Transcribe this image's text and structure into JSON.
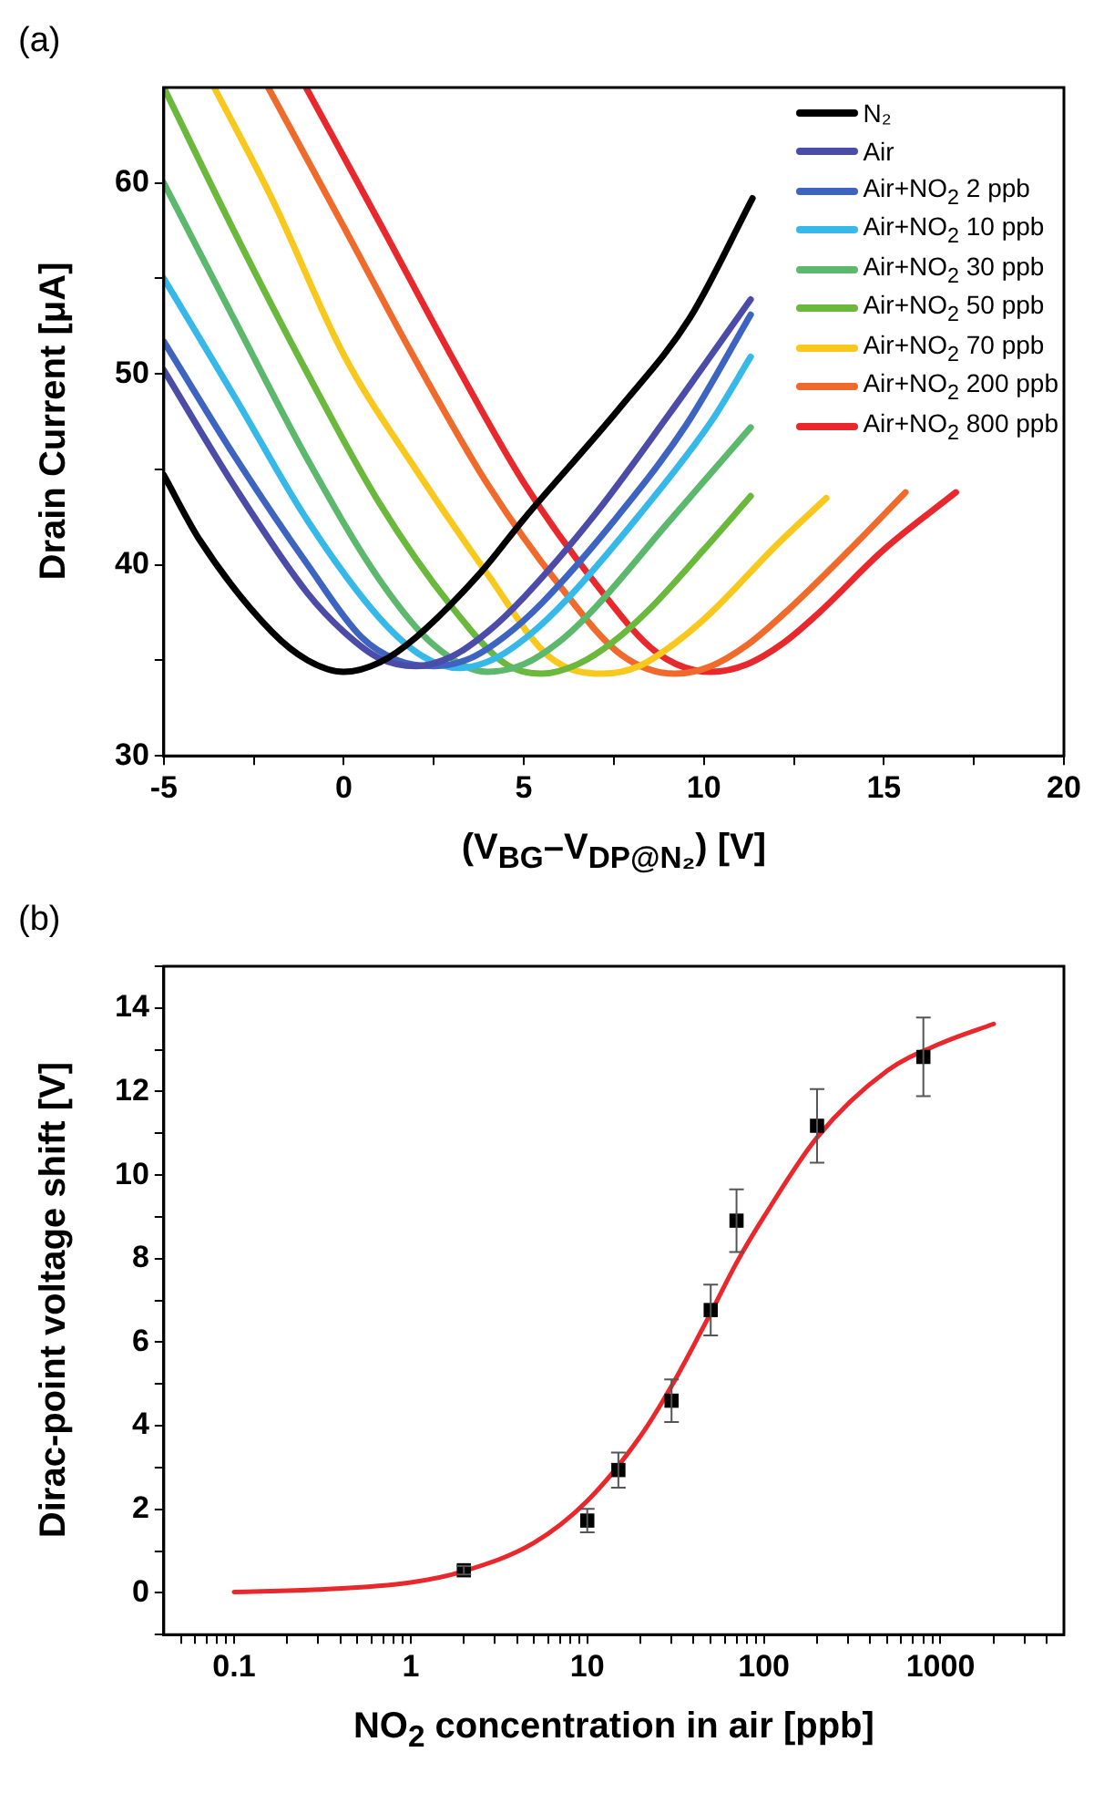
{
  "chart_data": [
    {
      "type": "line",
      "title": "(a)",
      "xlabel": "(V$_{BG}$–V$_{DP@N₂}$)  [V]",
      "ylabel": "Drain Current [μA]",
      "xlim": [
        -5,
        20
      ],
      "ylim": [
        30,
        65
      ],
      "xticks": [
        -5,
        {
          "value": -2.5,
          "label": null
        },
        0,
        {
          "value": 2.5,
          "label": null
        },
        5,
        {
          "value": 7.5,
          "label": null
        },
        10,
        {
          "value": 12.5,
          "label": null
        },
        15,
        {
          "value": 17.5,
          "label": null
        },
        20
      ],
      "yticks": [
        30,
        {
          "value": 35,
          "label": null
        },
        40,
        {
          "value": 45,
          "label": null
        },
        50,
        {
          "value": 55,
          "label": null
        },
        60
      ],
      "legend": "top right",
      "series": [
        {
          "name": "N₂",
          "color": "#000000",
          "x": [
            -5,
            -4,
            -2,
            -1,
            0,
            1,
            2,
            3.8,
            5,
            7.7,
            9.6,
            11.35
          ],
          "values": [
            44.7,
            41.3,
            36.5,
            35.0,
            34.4,
            34.9,
            36.2,
            39.6,
            42.4,
            48.3,
            52.9,
            59.2
          ]
        },
        {
          "name": "Air",
          "color": "#4b4ba8",
          "x": [
            -5,
            -3,
            -1,
            0,
            1,
            2,
            3,
            4,
            5,
            7,
            9,
            11.3
          ],
          "values": [
            50.2,
            44.0,
            38.5,
            36.5,
            35.1,
            34.7,
            35.2,
            36.5,
            38.3,
            42.7,
            47.8,
            53.9
          ]
        },
        {
          "name": "Air+NO$_{2}$ 2 ppb",
          "color": "#3c64c0",
          "x": [
            -5,
            -3,
            -1,
            0.5,
            1.5,
            2.5,
            3.5,
            4.5,
            5.5,
            7.5,
            9.5,
            11.3
          ],
          "values": [
            51.7,
            45.6,
            40.0,
            36.2,
            35.0,
            34.7,
            35.1,
            36.3,
            38.0,
            42.3,
            47.3,
            53.1
          ]
        },
        {
          "name": "Air+NO$_{2}$ 10 ppb",
          "color": "#36b8e8",
          "x": [
            -5,
            -3,
            -1,
            1,
            2.2,
            3.2,
            4.2,
            5.2,
            6.2,
            8.2,
            10.2,
            11.3
          ],
          "values": [
            55.0,
            48.7,
            42.3,
            37.2,
            35.2,
            34.6,
            35.1,
            36.4,
            38.2,
            42.6,
            47.5,
            50.9
          ]
        },
        {
          "name": "Air+NO$_{2}$ 30 ppb",
          "color": "#5cb86c",
          "x": [
            -5,
            -3,
            -1,
            1,
            2.5,
            4,
            5,
            6,
            7,
            9,
            11.3
          ],
          "values": [
            60.0,
            52.7,
            45.5,
            39.2,
            35.8,
            34.4,
            34.8,
            36.0,
            37.8,
            42.2,
            47.2
          ]
        },
        {
          "name": "Air+NO$_{2}$ 50 ppb",
          "color": "#6ab83c",
          "x": [
            -5,
            -3,
            -1,
            1,
            3,
            4.5,
            5.5,
            6.5,
            7.5,
            8.5,
            10,
            11.3
          ],
          "values": [
            65.0,
            57.3,
            50.0,
            43.2,
            37.8,
            34.8,
            34.3,
            34.8,
            36.0,
            37.7,
            40.8,
            43.6
          ]
        },
        {
          "name": "Air+NO$_{2}$ 70 ppb",
          "color": "#f8c81c",
          "x": [
            -3.6,
            -2,
            0,
            2,
            4,
            5.7,
            7.2,
            8.2,
            9.2,
            10.2,
            12,
            13.4
          ],
          "values": [
            65.0,
            59.2,
            51.0,
            45.0,
            39.5,
            35.2,
            34.3,
            34.7,
            35.9,
            37.5,
            41.0,
            43.5
          ]
        },
        {
          "name": "Air+NO$_{2}$ 200 ppb",
          "color": "#f06a2c",
          "x": [
            -2.1,
            0,
            2,
            4,
            6,
            7.7,
            9.2,
            10.2,
            11.2,
            12.2,
            14,
            15.6
          ],
          "values": [
            65.0,
            57.7,
            50.7,
            44.2,
            38.9,
            35.3,
            34.3,
            34.7,
            35.8,
            37.4,
            40.7,
            43.8
          ]
        },
        {
          "name": "Air+NO$_{2}$ 800 ppb",
          "color": "#e8282c",
          "x": [
            -1.05,
            1,
            3,
            5,
            7,
            8.7,
            10.2,
            11.2,
            12.2,
            13.2,
            15,
            17
          ],
          "values": [
            65.0,
            57.9,
            50.9,
            44.3,
            39.0,
            35.4,
            34.4,
            34.8,
            35.9,
            37.5,
            40.8,
            43.8
          ]
        }
      ]
    },
    {
      "type": "scatter",
      "title": "(b)",
      "xlabel": "NO$_{2}$ concentration in air [ppb]",
      "ylabel": "Dirac-point voltage shift [V]",
      "log": "x",
      "xlim": [
        0.04,
        5000
      ],
      "ylim": [
        -1,
        15
      ],
      "xticks": [
        {
          "value": 0.05,
          "label": null
        },
        {
          "value": 0.06,
          "label": null
        },
        {
          "value": 0.07,
          "label": null
        },
        {
          "value": 0.08,
          "label": null
        },
        {
          "value": 0.09,
          "label": null
        },
        0.1,
        {
          "value": 0.2,
          "label": null
        },
        {
          "value": 0.3,
          "label": null
        },
        {
          "value": 0.4,
          "label": null
        },
        {
          "value": 0.5,
          "label": null
        },
        {
          "value": 0.6,
          "label": null
        },
        {
          "value": 0.7,
          "label": null
        },
        {
          "value": 0.8,
          "label": null
        },
        {
          "value": 0.9,
          "label": null
        },
        1,
        {
          "value": 2,
          "label": null
        },
        {
          "value": 3,
          "label": null
        },
        {
          "value": 4,
          "label": null
        },
        {
          "value": 5,
          "label": null
        },
        {
          "value": 6,
          "label": null
        },
        {
          "value": 7,
          "label": null
        },
        {
          "value": 8,
          "label": null
        },
        {
          "value": 9,
          "label": null
        },
        10,
        {
          "value": 20,
          "label": null
        },
        {
          "value": 30,
          "label": null
        },
        {
          "value": 40,
          "label": null
        },
        {
          "value": 50,
          "label": null
        },
        {
          "value": 60,
          "label": null
        },
        {
          "value": 70,
          "label": null
        },
        {
          "value": 80,
          "label": null
        },
        {
          "value": 90,
          "label": null
        },
        100,
        {
          "value": 200,
          "label": null
        },
        {
          "value": 300,
          "label": null
        },
        {
          "value": 400,
          "label": null
        },
        {
          "value": 500,
          "label": null
        },
        {
          "value": 600,
          "label": null
        },
        {
          "value": 700,
          "label": null
        },
        {
          "value": 800,
          "label": null
        },
        {
          "value": 900,
          "label": null
        },
        1000,
        {
          "value": 2000,
          "label": null
        },
        {
          "value": 3000,
          "label": null
        },
        {
          "value": 4000,
          "label": null
        }
      ],
      "yticks": [
        {
          "value": -1,
          "label": null
        },
        0,
        {
          "value": 1,
          "label": null
        },
        2,
        {
          "value": 3,
          "label": null
        },
        4,
        {
          "value": 5,
          "label": null
        },
        6,
        {
          "value": 7,
          "label": null
        },
        8,
        {
          "value": 9,
          "label": null
        },
        10,
        {
          "value": 11,
          "label": null
        },
        12,
        {
          "value": 13,
          "label": null
        },
        14,
        {
          "value": 15,
          "label": null
        }
      ],
      "series": [
        {
          "type": "scatter",
          "marker": "square",
          "color": "#000000",
          "x": [
            2,
            10,
            15,
            30,
            50,
            70,
            200,
            800
          ],
          "values": [
            0.54,
            1.73,
            2.94,
            4.6,
            6.77,
            8.91,
            11.18,
            12.83
          ],
          "errors": [
            0.1,
            0.28,
            0.42,
            0.51,
            0.61,
            0.75,
            0.88,
            0.94
          ]
        },
        {
          "type": "line",
          "color": "#e8282c",
          "x": [
            0.1,
            0.3,
            1,
            2,
            5,
            10,
            20,
            30,
            50,
            70,
            100,
            200,
            500,
            1000,
            2000
          ],
          "values": [
            0.02,
            0.08,
            0.25,
            0.52,
            1.2,
            2.2,
            3.75,
            4.95,
            6.7,
            7.9,
            9.0,
            10.9,
            12.5,
            13.15,
            13.62
          ]
        }
      ]
    }
  ]
}
